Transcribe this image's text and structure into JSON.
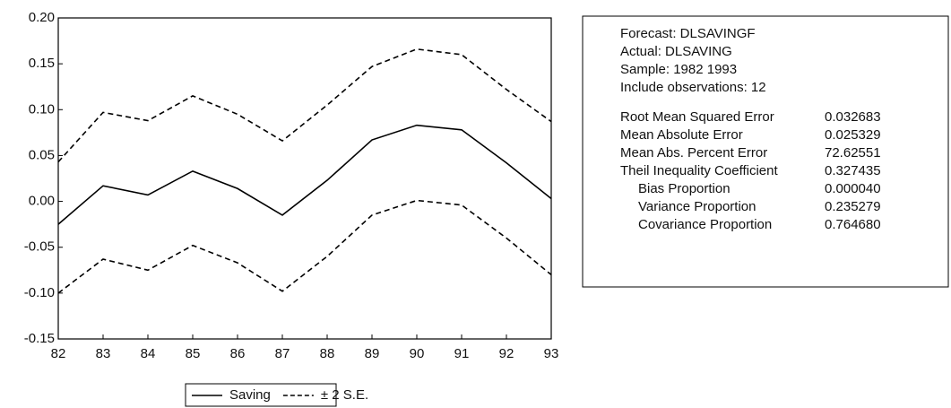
{
  "chart_data": {
    "type": "line",
    "categories": [
      "82",
      "83",
      "84",
      "85",
      "86",
      "87",
      "88",
      "89",
      "90",
      "91",
      "92",
      "93"
    ],
    "series": [
      {
        "name": "Saving",
        "color": "#000000",
        "dash": false,
        "values": [
          -0.025,
          0.017,
          0.007,
          0.033,
          0.014,
          -0.015,
          0.023,
          0.067,
          0.083,
          0.078,
          0.042,
          0.003
        ]
      },
      {
        "name": "± 2 S.E.",
        "color": "#000000",
        "dash": true,
        "values": [
          0.043,
          0.097,
          0.088,
          0.115,
          0.095,
          0.066,
          0.105,
          0.147,
          0.166,
          0.16,
          0.122,
          0.087
        ],
        "lower": [
          -0.1,
          -0.063,
          -0.075,
          -0.048,
          -0.067,
          -0.098,
          -0.06,
          -0.015,
          0.001,
          -0.004,
          -0.04,
          -0.08
        ]
      }
    ],
    "ylim": [
      -0.15,
      0.2
    ],
    "yticks": [
      {
        "value": 0.2,
        "label": "0.20"
      },
      0.15,
      {
        "value": 0.1,
        "label": "0.10"
      },
      0.05,
      {
        "value": 0,
        "label": "0.00"
      },
      -0.05,
      {
        "value": -0.1,
        "label": "-0.10"
      },
      -0.15
    ],
    "legend": "bottom",
    "stats_box": {
      "header": [
        "Forecast: DLSAVINGF",
        "Actual: DLSAVING",
        "Sample: 1982 1993",
        "Include observations: 12"
      ],
      "rows": [
        {
          "label": "Root Mean Squared Error",
          "value": "0.032683"
        },
        {
          "label": "Mean Absolute Error",
          "value": "0.025329"
        },
        {
          "label": "Mean Abs. Percent Error",
          "value": "72.62551"
        },
        {
          "label": "Theil Inequality Coefficient",
          "value": "0.327435"
        },
        {
          "label": "Bias Proportion",
          "value": "0.000040",
          "sub": true
        },
        {
          "label": "Variance Proportion",
          "value": "0.235279",
          "sub": true
        },
        {
          "label": "Covariance Proportion",
          "value": "0.764680",
          "sub": true
        }
      ]
    }
  }
}
